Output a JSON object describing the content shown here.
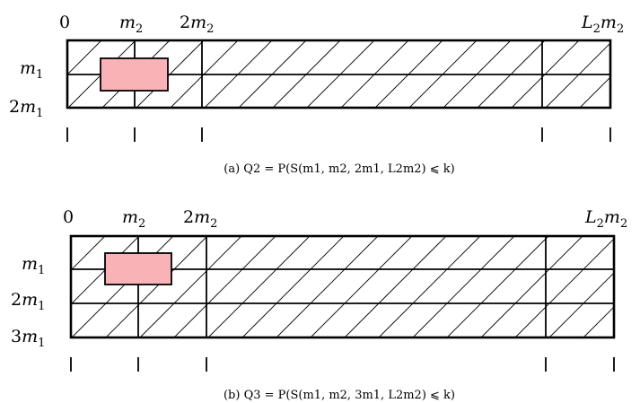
{
  "panels": [
    {
      "id": "a",
      "x_labels": [
        "0",
        "m2",
        "2m2",
        "L2m2"
      ],
      "y_labels": [
        "m1",
        "2m1"
      ],
      "caption": "(a) Q2 = P(S(m1, m2, 2m1, L2m2) ⩽ k)"
    },
    {
      "id": "b",
      "x_labels": [
        "0",
        "m2",
        "2m2",
        "L2m2"
      ],
      "y_labels": [
        "m1",
        "2m1",
        "3m1"
      ],
      "caption": "(b) Q3 = P(S(m1, m2, 3m1, L2m2) ⩽ k)"
    }
  ],
  "colors": {
    "highlight": "#f9b3b6",
    "line": "#000000"
  }
}
